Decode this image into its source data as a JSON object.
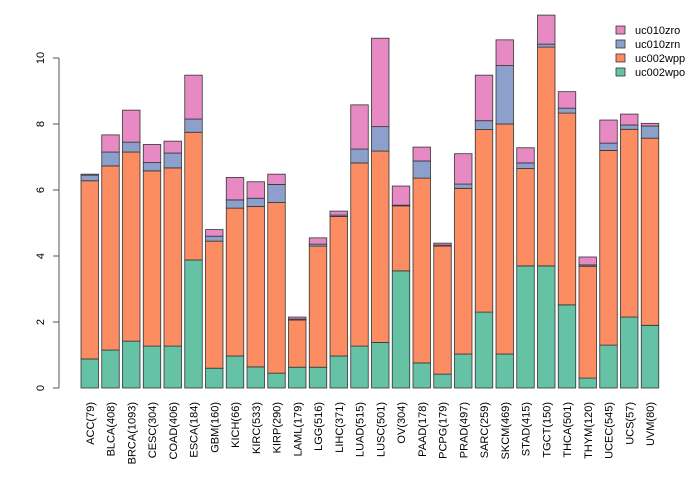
{
  "chart_data": {
    "type": "bar",
    "stacked": true,
    "title": "",
    "xlabel": "",
    "ylabel": "",
    "ylim": [
      0,
      11.4
    ],
    "yticks": [
      0,
      2,
      4,
      6,
      8,
      10
    ],
    "grid": false,
    "legend_position": "top-right",
    "categories": [
      "ACC(79)",
      "BLCA(408)",
      "BRCA(1093)",
      "CESC(304)",
      "COAD(406)",
      "ESCA(184)",
      "GBM(160)",
      "KICH(66)",
      "KIRC(533)",
      "KIRP(290)",
      "LAML(179)",
      "LGG(516)",
      "LIHC(371)",
      "LUAD(515)",
      "LUSC(501)",
      "OV(304)",
      "PAAD(178)",
      "PCPG(179)",
      "PRAD(497)",
      "SARC(259)",
      "SKCM(469)",
      "STAD(415)",
      "TGCT(150)",
      "THCA(501)",
      "THYM(120)",
      "UCEC(545)",
      "UCS(57)",
      "UVM(80)"
    ],
    "series": [
      {
        "name": "uc002wpo",
        "color": "#66c2a5",
        "values": [
          0.88,
          1.15,
          1.42,
          1.27,
          1.27,
          3.88,
          0.6,
          0.97,
          0.64,
          0.45,
          0.63,
          0.63,
          0.97,
          1.27,
          1.38,
          3.55,
          0.76,
          0.42,
          1.03,
          2.3,
          1.03,
          3.7,
          3.7,
          2.52,
          0.3,
          1.3,
          2.15,
          1.9
        ]
      },
      {
        "name": "uc002wpp",
        "color": "#fc8d62",
        "values": [
          5.4,
          5.58,
          5.73,
          5.31,
          5.4,
          3.87,
          3.85,
          4.48,
          4.86,
          5.17,
          1.43,
          3.67,
          4.23,
          5.55,
          5.8,
          1.97,
          5.6,
          3.88,
          5.02,
          5.53,
          6.97,
          2.95,
          6.63,
          5.81,
          3.39,
          5.9,
          5.69,
          5.67
        ]
      },
      {
        "name": "uc010zrn",
        "color": "#8da0cb",
        "values": [
          0.17,
          0.42,
          0.3,
          0.25,
          0.45,
          0.4,
          0.15,
          0.25,
          0.25,
          0.55,
          0.03,
          0.06,
          0.04,
          0.42,
          0.74,
          0.02,
          0.52,
          0.03,
          0.13,
          0.27,
          1.77,
          0.17,
          0.09,
          0.15,
          0.04,
          0.22,
          0.13,
          0.37
        ]
      },
      {
        "name": "uc010zro",
        "color": "#e78ac3",
        "values": [
          0.03,
          0.52,
          0.97,
          0.55,
          0.36,
          1.33,
          0.2,
          0.68,
          0.5,
          0.31,
          0.06,
          0.19,
          0.12,
          1.34,
          2.68,
          0.58,
          0.42,
          0.06,
          0.92,
          1.38,
          0.78,
          0.46,
          0.88,
          0.5,
          0.24,
          0.7,
          0.33,
          0.08
        ]
      }
    ],
    "legend_order": [
      "uc010zro",
      "uc010zrn",
      "uc002wpp",
      "uc002wpo"
    ]
  }
}
